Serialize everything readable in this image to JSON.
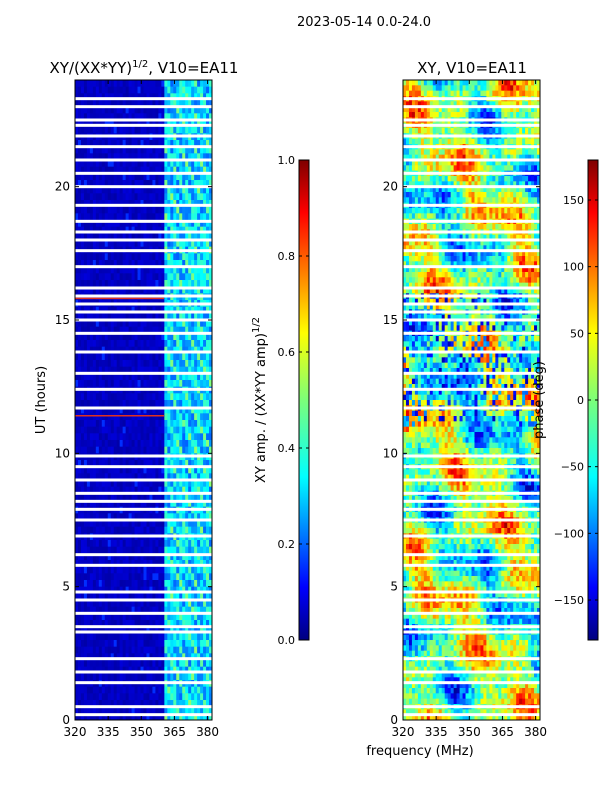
{
  "suptitle": "2023-05-14 0.0-24.0",
  "chart_data": [
    {
      "type": "heatmap",
      "title_base": "XY/(XX*YY)",
      "title_exp": "1/2",
      "title_suffix": ", V10=EA11",
      "xlabel": "",
      "ylabel": "UT (hours)",
      "xlim": [
        320,
        382
      ],
      "ylim": [
        0,
        24
      ],
      "x_ticks": [
        320,
        335,
        350,
        365,
        380
      ],
      "y_ticks": [
        0,
        5,
        10,
        15,
        20
      ],
      "colorbar": {
        "label_base": "XY amp. / (XX*YY amp)",
        "label_exp": "1/2",
        "range": [
          0.0,
          1.0
        ],
        "ticks": [
          "0.0",
          "0.2",
          "0.4",
          "0.6",
          "0.8",
          "1.0"
        ]
      }
    },
    {
      "type": "heatmap",
      "title": "XY, V10=EA11",
      "xlabel": "frequency (MHz)",
      "ylabel": "",
      "xlim": [
        320,
        382
      ],
      "ylim": [
        0,
        24
      ],
      "x_ticks": [
        320,
        335,
        350,
        365,
        380
      ],
      "y_ticks": [
        0,
        5,
        10,
        15,
        20
      ],
      "colorbar": {
        "label": "phase (deg)",
        "range": [
          -180,
          180
        ],
        "ticks": [
          "150",
          "100",
          "50",
          "0",
          "−50",
          "−100",
          "−150"
        ]
      }
    }
  ],
  "blank_rows_hours": [
    0.2,
    0.5,
    1.4,
    1.8,
    2.3,
    3.3,
    3.5,
    4.0,
    4.5,
    4.8,
    5.8,
    6.2,
    6.9,
    7.5,
    7.9,
    8.2,
    8.5,
    9.0,
    9.5,
    9.9,
    11.7,
    12.4,
    13.0,
    13.8,
    14.5,
    15.0,
    15.3,
    15.6,
    15.9,
    16.2,
    17.0,
    17.6,
    18.0,
    18.3,
    18.7,
    19.3,
    20.0,
    20.5,
    21.0,
    21.5,
    21.9,
    22.3,
    22.5,
    23.0,
    23.3
  ]
}
